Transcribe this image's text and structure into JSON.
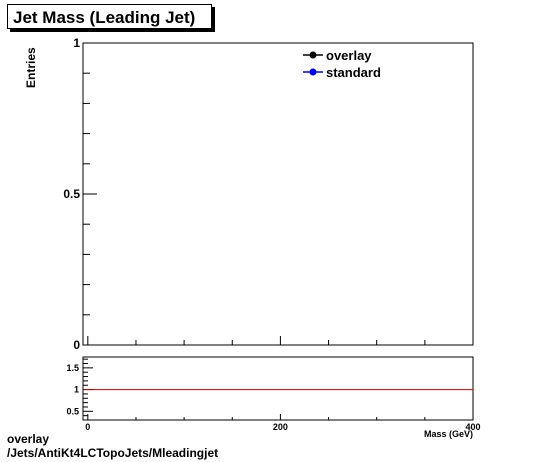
{
  "chart_data": [
    {
      "type": "line",
      "title": "Jet Mass (Leading Jet)",
      "xlabel": "Mass (GeV)",
      "ylabel": "Entries",
      "xlim": [
        -5,
        400
      ],
      "ylim": [
        0,
        1
      ],
      "x_ticks": [
        "0",
        "200",
        "400"
      ],
      "y_ticks": [
        "0",
        "0.5",
        "1"
      ],
      "legend_position": "top-right",
      "series": [
        {
          "name": "overlay",
          "color": "#000000",
          "values": []
        },
        {
          "name": "standard",
          "color": "#0000ff",
          "values": []
        }
      ]
    },
    {
      "type": "line",
      "xlim": [
        -5,
        400
      ],
      "ylim": [
        0.3,
        1.75
      ],
      "y_ticks": [
        "0.5",
        "1",
        "1.5"
      ],
      "reference_line": {
        "y": 1,
        "color": "#cc0000"
      }
    }
  ],
  "footer": {
    "line1": "overlay",
    "line2": "/Jets/AntiKt4LCTopoJets/Mleadingjet"
  }
}
